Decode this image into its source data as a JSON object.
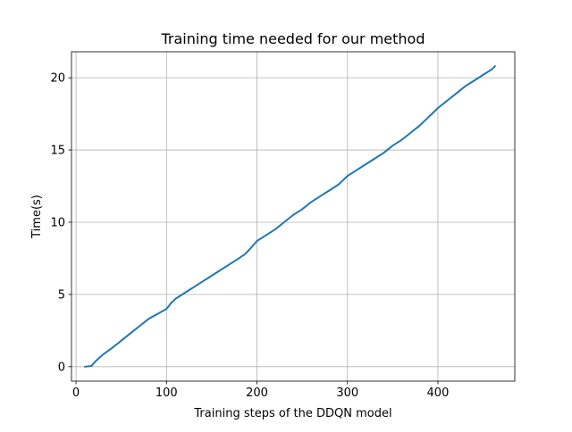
{
  "chart_data": {
    "type": "line",
    "title": "Training time needed for our method",
    "xlabel": "Training steps of the DDQN model",
    "ylabel": "Time(s)",
    "xlim": [
      -5,
      485
    ],
    "ylim": [
      -1,
      21.8
    ],
    "xticks": [
      0,
      100,
      200,
      300,
      400
    ],
    "yticks": [
      0,
      5,
      10,
      15,
      20
    ],
    "xtick_labels": [
      "0",
      "100",
      "200",
      "300",
      "400"
    ],
    "ytick_labels": [
      "0",
      "5",
      "10",
      "15",
      "20"
    ],
    "grid": true,
    "legend": "none",
    "series": [
      {
        "color": "#1f77b4",
        "x": [
          10,
          17,
          22,
          30,
          40,
          50,
          60,
          70,
          80,
          90,
          100,
          105,
          110,
          120,
          130,
          140,
          150,
          160,
          170,
          180,
          187,
          193,
          200,
          210,
          220,
          230,
          240,
          250,
          260,
          270,
          280,
          290,
          295,
          300,
          310,
          320,
          330,
          340,
          350,
          360,
          370,
          380,
          390,
          400,
          410,
          420,
          430,
          440,
          450,
          460,
          463
        ],
        "y": [
          0.0,
          0.05,
          0.4,
          0.85,
          1.3,
          1.8,
          2.3,
          2.8,
          3.3,
          3.65,
          4.0,
          4.4,
          4.7,
          5.1,
          5.5,
          5.9,
          6.3,
          6.7,
          7.1,
          7.5,
          7.8,
          8.2,
          8.7,
          9.1,
          9.5,
          10.0,
          10.5,
          10.9,
          11.4,
          11.8,
          12.2,
          12.6,
          12.9,
          13.2,
          13.6,
          14.0,
          14.4,
          14.8,
          15.3,
          15.7,
          16.2,
          16.7,
          17.3,
          17.9,
          18.4,
          18.9,
          19.4,
          19.8,
          20.2,
          20.6,
          20.8
        ]
      }
    ]
  }
}
